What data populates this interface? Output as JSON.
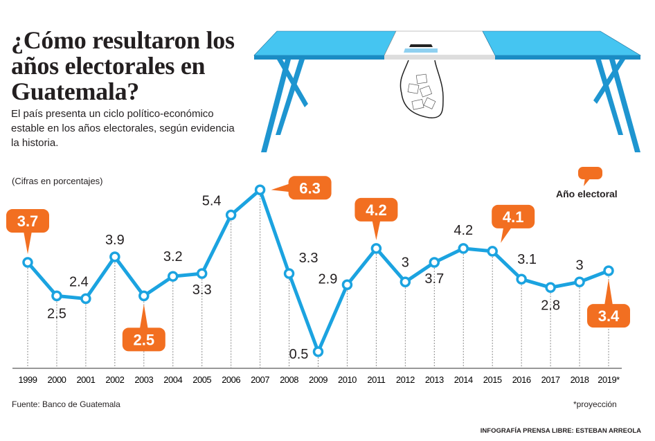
{
  "title": "¿Cómo resultaron los años electorales en Guatemala?",
  "subtitle": "El país presenta un ciclo político-económico estable en los años electorales, según evidencia la historia.",
  "units_note": "(Cifras en porcentajes)",
  "legend": {
    "label": "Año electoral",
    "color": "#f26f21"
  },
  "source": "Fuente: Banco de Guatemala",
  "footnote": "*proyección",
  "credit": "INFOGRAFÍA PRENSA LIBRE: ESTEBAN ARREOLA",
  "colors": {
    "line": "#1ba3e0",
    "electoral": "#f26f21",
    "table_blue": "#45c5f1",
    "table_edge": "#1a8cc4"
  },
  "chart_data": {
    "type": "line",
    "title": "¿Cómo resultaron los años electorales en Guatemala?",
    "ylabel": "(Cifras en porcentajes)",
    "categories": [
      "1999",
      "2000",
      "2001",
      "2002",
      "2003",
      "2004",
      "2005",
      "2006",
      "2007",
      "2008",
      "2009",
      "2010",
      "2011",
      "2012",
      "2013",
      "2014",
      "2015",
      "2016",
      "2017",
      "2018",
      "2019*"
    ],
    "values": [
      3.7,
      2.5,
      2.4,
      3.9,
      2.5,
      3.2,
      3.3,
      5.4,
      6.3,
      3.3,
      0.5,
      2.9,
      4.2,
      3,
      3.7,
      4.2,
      4.1,
      3.1,
      2.8,
      3,
      3.4
    ],
    "labels": [
      "3.7",
      "2.5",
      "2.4",
      "3.9",
      "2.5",
      "3.2",
      "3.3",
      "5.4",
      "6.3",
      "3.3",
      "0.5",
      "2.9",
      "4.2",
      "3",
      "3.7",
      "4.2",
      "4.1",
      "3.1",
      "2.8",
      "3",
      "3.4"
    ],
    "electoral_years": [
      "1999",
      "2003",
      "2007",
      "2011",
      "2015",
      "2019*"
    ],
    "grid": false,
    "legend_position": "top-right"
  }
}
